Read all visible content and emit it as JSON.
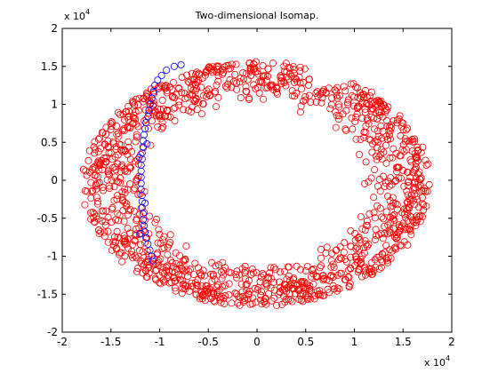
{
  "chart_data": {
    "type": "scatter",
    "title": "Two-dimensional Isomap.",
    "xlabel": "",
    "ylabel": "",
    "xlim": [
      -2,
      2
    ],
    "ylim": [
      -2,
      2
    ],
    "x_ticks": [
      "-2",
      "-1.5",
      "-1",
      "-0.5",
      "0",
      "0.5",
      "1",
      "1.5",
      "2"
    ],
    "y_ticks": [
      "-2",
      "-1.5",
      "-1",
      "-0.5",
      "0",
      "0.5",
      "1",
      "1.5",
      "2"
    ],
    "x_exponent": {
      "base": "x 10",
      "power": "4"
    },
    "y_exponent": {
      "base": "x 10",
      "power": "4"
    },
    "grid": false,
    "marker": "circle-open",
    "series": [
      {
        "color": "#ff0000",
        "description": "ring of points (annulus) centred near (0, 0); inner radius about 1.0–1.1, outer radius about 1.5–1.8 (units x10^4)",
        "ring": {
          "center": [
            0.0,
            -0.05
          ],
          "inner_rx": 1.0,
          "inner_ry": 0.98,
          "outer_rx": 1.8,
          "outer_ry": 1.62,
          "count": 1400
        }
      },
      {
        "color": "#0000ff",
        "description": "path of points on the left side of the ring",
        "points": [
          [
            -0.78,
            1.52
          ],
          [
            -0.85,
            1.5
          ],
          [
            -0.93,
            1.45
          ],
          [
            -0.98,
            1.38
          ],
          [
            -1.02,
            1.32
          ],
          [
            -1.05,
            1.25
          ],
          [
            -1.06,
            1.16
          ],
          [
            -1.08,
            1.08
          ],
          [
            -1.1,
            1.0
          ],
          [
            -1.11,
            0.92
          ],
          [
            -1.12,
            0.84
          ],
          [
            -1.14,
            0.76
          ],
          [
            -1.15,
            0.68
          ],
          [
            -1.16,
            0.6
          ],
          [
            -1.17,
            0.52
          ],
          [
            -1.17,
            0.44
          ],
          [
            -1.18,
            0.36
          ],
          [
            -1.18,
            0.28
          ],
          [
            -1.19,
            0.2
          ],
          [
            -1.19,
            0.12
          ],
          [
            -1.19,
            0.04
          ],
          [
            -1.19,
            -0.04
          ],
          [
            -1.19,
            -0.12
          ],
          [
            -1.18,
            -0.2
          ],
          [
            -1.18,
            -0.28
          ],
          [
            -1.18,
            -0.36
          ],
          [
            -1.17,
            -0.44
          ],
          [
            -1.17,
            -0.52
          ],
          [
            -1.16,
            -0.6
          ],
          [
            -1.15,
            -0.68
          ],
          [
            -1.14,
            -0.76
          ],
          [
            -1.12,
            -0.84
          ],
          [
            -1.1,
            -0.92
          ],
          [
            -1.08,
            -1.0
          ],
          [
            -1.07,
            -1.06
          ],
          [
            -1.13,
            0.48
          ],
          [
            -1.21,
            0.3
          ],
          [
            -1.15,
            -0.3
          ],
          [
            -1.2,
            -0.7
          ]
        ]
      }
    ]
  }
}
